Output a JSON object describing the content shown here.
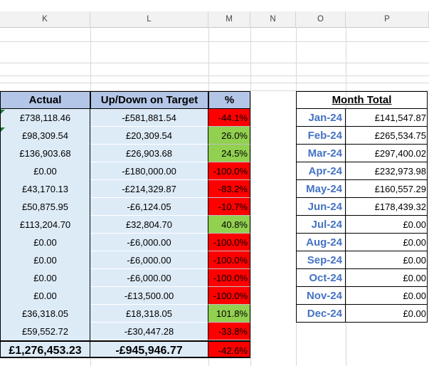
{
  "column_headers": [
    "K",
    "L",
    "M",
    "N",
    "O",
    "P"
  ],
  "targets_table": {
    "headers": {
      "actual": "Actual",
      "up_down": "Up/Down on Target",
      "percent": "%"
    },
    "rows": [
      {
        "actual": "£738,118.46",
        "up_down": "-£581,881.54",
        "percent": "-44.1%",
        "status": "red"
      },
      {
        "actual": "£98,309.54",
        "up_down": "£20,309.54",
        "percent": "26.0%",
        "status": "green"
      },
      {
        "actual": "£136,903.68",
        "up_down": "£26,903.68",
        "percent": "24.5%",
        "status": "green"
      },
      {
        "actual": "£0.00",
        "up_down": "-£180,000.00",
        "percent": "-100.0%",
        "status": "red"
      },
      {
        "actual": "£43,170.13",
        "up_down": "-£214,329.87",
        "percent": "-83.2%",
        "status": "red"
      },
      {
        "actual": "£50,875.95",
        "up_down": "-£6,124.05",
        "percent": "-10.7%",
        "status": "red"
      },
      {
        "actual": "£113,204.70",
        "up_down": "£32,804.70",
        "percent": "40.8%",
        "status": "green"
      },
      {
        "actual": "£0.00",
        "up_down": "-£6,000.00",
        "percent": "-100.0%",
        "status": "red"
      },
      {
        "actual": "£0.00",
        "up_down": "-£6,000.00",
        "percent": "-100.0%",
        "status": "red"
      },
      {
        "actual": "£0.00",
        "up_down": "-£6,000.00",
        "percent": "-100.0%",
        "status": "red"
      },
      {
        "actual": "£0.00",
        "up_down": "-£13,500.00",
        "percent": "-100.0%",
        "status": "red"
      },
      {
        "actual": "£36,318.05",
        "up_down": "£18,318.05",
        "percent": "101.8%",
        "status": "green"
      },
      {
        "actual": "£59,552.72",
        "up_down": "-£30,447.28",
        "percent": "-33.8%",
        "status": "red"
      }
    ],
    "total": {
      "actual": "£1,276,453.23",
      "up_down": "-£945,946.77",
      "percent": "-42.6%"
    }
  },
  "month_total_table": {
    "title": "Month Total",
    "rows": [
      {
        "month": "Jan-24",
        "value": "£141,547.87"
      },
      {
        "month": "Feb-24",
        "value": "£265,534.75"
      },
      {
        "month": "Mar-24",
        "value": "£297,400.02"
      },
      {
        "month": "Apr-24",
        "value": "£232,973.98"
      },
      {
        "month": "May-24",
        "value": "£160,557.29"
      },
      {
        "month": "Jun-24",
        "value": "£178,439.32"
      },
      {
        "month": "Jul-24",
        "value": "£0.00"
      },
      {
        "month": "Aug-24",
        "value": "£0.00"
      },
      {
        "month": "Sep-24",
        "value": "£0.00"
      },
      {
        "month": "Oct-24",
        "value": "£0.00"
      },
      {
        "month": "Nov-24",
        "value": "£0.00"
      },
      {
        "month": "Dec-24",
        "value": "£0.00"
      }
    ]
  },
  "colors": {
    "header_fill": "#b4c6e7",
    "row_fill": "#ddebf7",
    "negative_fill": "#ff0000",
    "positive_fill": "#92d050",
    "month_text": "#4472c4"
  }
}
